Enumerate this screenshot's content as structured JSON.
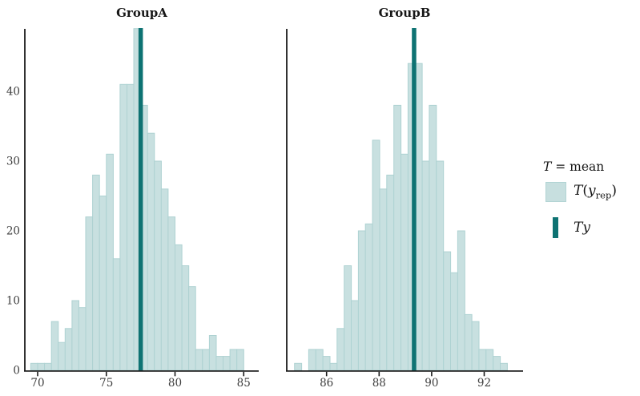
{
  "figure": {
    "background": "#ffffff",
    "legend": {
      "title": "T = mean",
      "items": [
        {
          "label": "T(y_rep)",
          "swatch": "box"
        },
        {
          "label": "T(y)",
          "swatch": "line"
        }
      ]
    },
    "colors": {
      "bar_fill": "#c8e0e0",
      "bar_stroke": "#aed2d2",
      "observed_line": "#0e7373",
      "axis": "#1c1c1c",
      "tick_label": "#3e3e3e",
      "title": "#161616"
    }
  },
  "chart_data": [
    {
      "type": "bar",
      "subtype": "histogram",
      "title": "GroupA",
      "xlabel": "",
      "ylabel": "",
      "bin_start": 69.5,
      "bin_width": 0.5,
      "counts": [
        1,
        1,
        1,
        7,
        4,
        6,
        10,
        9,
        22,
        28,
        25,
        31,
        16,
        41,
        41,
        49,
        38,
        34,
        30,
        26,
        22,
        18,
        15,
        12,
        3,
        3,
        5,
        2,
        2,
        3,
        3
      ],
      "observed_T": 77.5,
      "x_ticks": [
        70,
        75,
        80,
        85
      ],
      "y_ticks": [
        0,
        10,
        20,
        30,
        40
      ],
      "xlim": [
        69.2,
        85.8
      ],
      "ylim": [
        0,
        49.5
      ],
      "grid": false,
      "note": "distribution of T(y_rep); teal vertical line = observed T(y)"
    },
    {
      "type": "bar",
      "subtype": "histogram",
      "title": "GroupB",
      "xlabel": "",
      "ylabel": "",
      "bin_start": 84.78,
      "bin_width": 0.27,
      "counts": [
        1,
        0,
        3,
        3,
        2,
        1,
        6,
        15,
        10,
        20,
        21,
        33,
        26,
        28,
        38,
        31,
        44,
        44,
        30,
        38,
        30,
        17,
        14,
        20,
        8,
        7,
        3,
        3,
        2,
        1
      ],
      "observed_T": 89.33,
      "x_ticks": [
        86,
        88,
        90,
        92
      ],
      "y_ticks": [],
      "xlim": [
        84.4,
        93.4
      ],
      "ylim": [
        0,
        49.5
      ],
      "grid": false,
      "note": "distribution of T(y_rep); teal vertical line = observed T(y)"
    }
  ]
}
